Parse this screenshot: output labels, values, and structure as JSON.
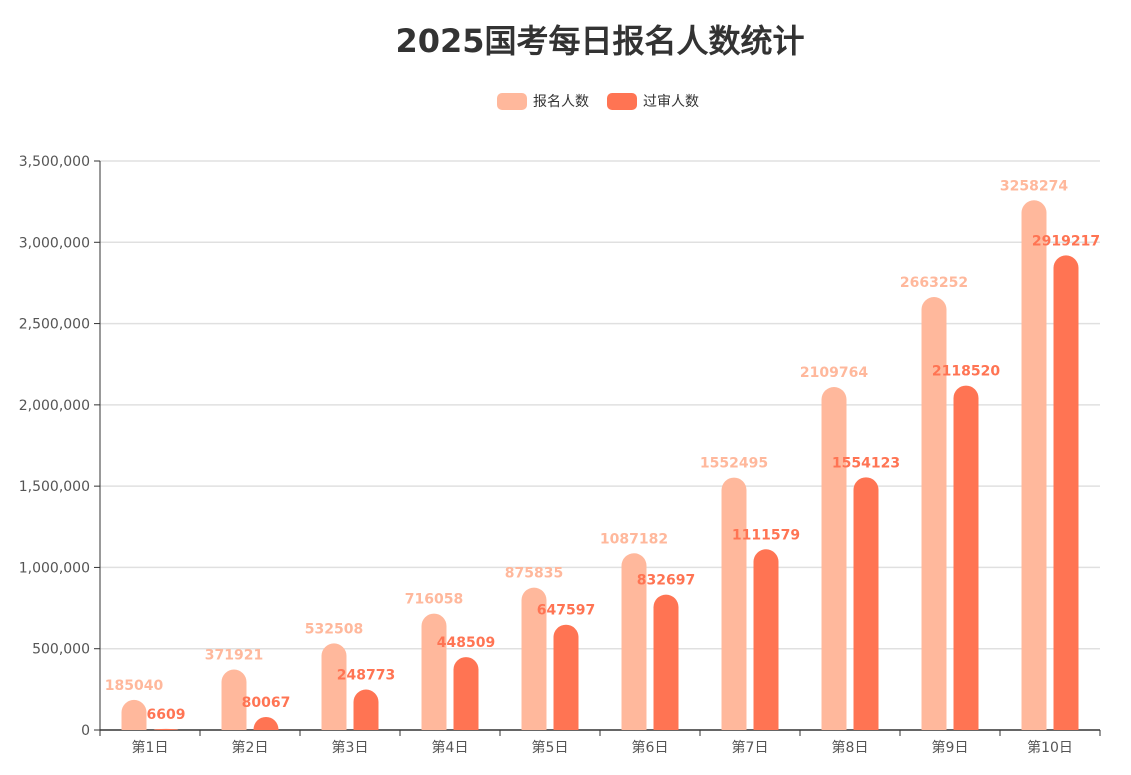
{
  "chart_data": {
    "type": "bar",
    "title": "2025国考每日报名人数统计",
    "categories": [
      "第1日",
      "第2日",
      "第3日",
      "第4日",
      "第5日",
      "第6日",
      "第7日",
      "第8日",
      "第9日",
      "第10日"
    ],
    "series": [
      {
        "name": "报名人数",
        "color": "#FFB89C",
        "values": [
          185040,
          371921,
          532508,
          716058,
          875835,
          1087182,
          1552495,
          2109764,
          2663252,
          3258274
        ]
      },
      {
        "name": "过审人数",
        "color": "#FF7453",
        "values": [
          6609,
          80067,
          248773,
          448509,
          647597,
          832697,
          1111579,
          1554123,
          2118520,
          2919217
        ]
      }
    ],
    "ylim": [
      0,
      3500000
    ],
    "yticks": [
      "0",
      "500,000",
      "1,000,000",
      "1,500,000",
      "2,000,000",
      "2,500,000",
      "3,000,000",
      "3,500,000"
    ],
    "grid": true,
    "legend": "top-center",
    "data_labels": true
  }
}
